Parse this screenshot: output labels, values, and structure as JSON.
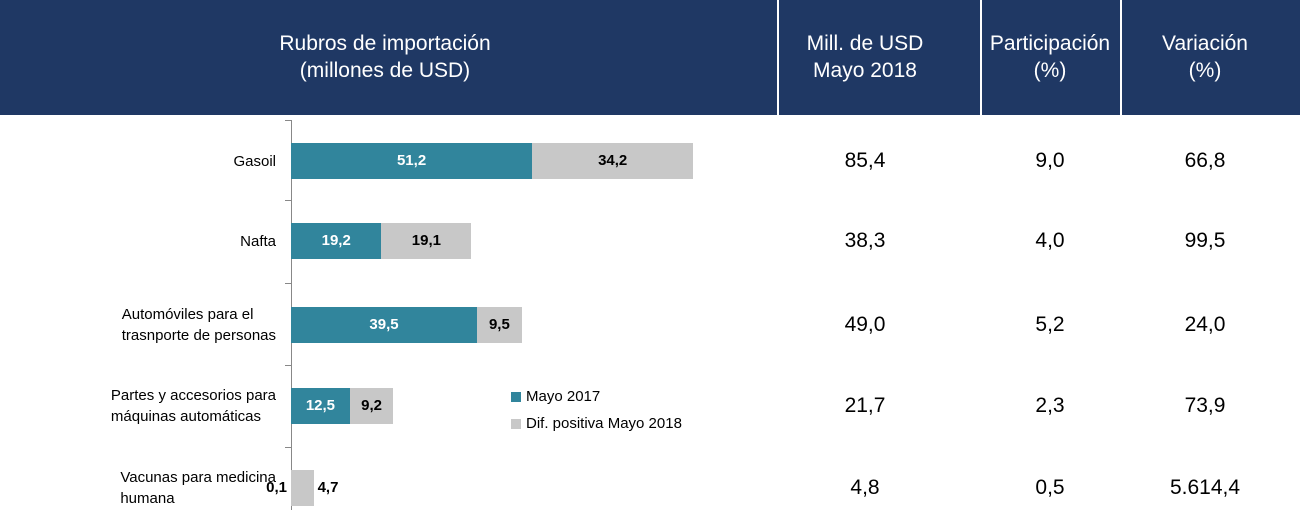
{
  "header": {
    "title": "Rubros de importación\n(millones de USD)",
    "columns": [
      "Mill. de USD\nMayo 2018",
      "Participación\n(%)",
      "Variación\n(%)"
    ]
  },
  "chart_data": {
    "type": "bar",
    "orientation": "horizontal",
    "stacked": true,
    "categories": [
      "Gasoil",
      "Nafta",
      "Automóviles para el\ntrasnporte de personas",
      "Partes y accesorios para\nmáquinas automáticas",
      "Vacunas para medicina\nhumana"
    ],
    "series": [
      {
        "name": "Mayo 2017",
        "color": "#31859c",
        "values": [
          51.2,
          19.2,
          39.5,
          12.5,
          0.1
        ],
        "value_labels": [
          "51,2",
          "19,2",
          "39,5",
          "12,5",
          "0,1"
        ]
      },
      {
        "name": "Dif. positiva Mayo 2018",
        "color": "#c8c8c8",
        "values": [
          34.2,
          19.1,
          9.5,
          9.2,
          4.7
        ],
        "value_labels": [
          "34,2",
          "19,1",
          "9,5",
          "9,2",
          "4,7"
        ]
      }
    ],
    "xlim": [
      0,
      100
    ]
  },
  "table": {
    "rows": [
      [
        "85,4",
        "9,0",
        "66,8"
      ],
      [
        "38,3",
        "4,0",
        "99,5"
      ],
      [
        "49,0",
        "5,2",
        "24,0"
      ],
      [
        "21,7",
        "2,3",
        "73,9"
      ],
      [
        "4,8",
        "0,5",
        "5.614,4"
      ]
    ]
  }
}
